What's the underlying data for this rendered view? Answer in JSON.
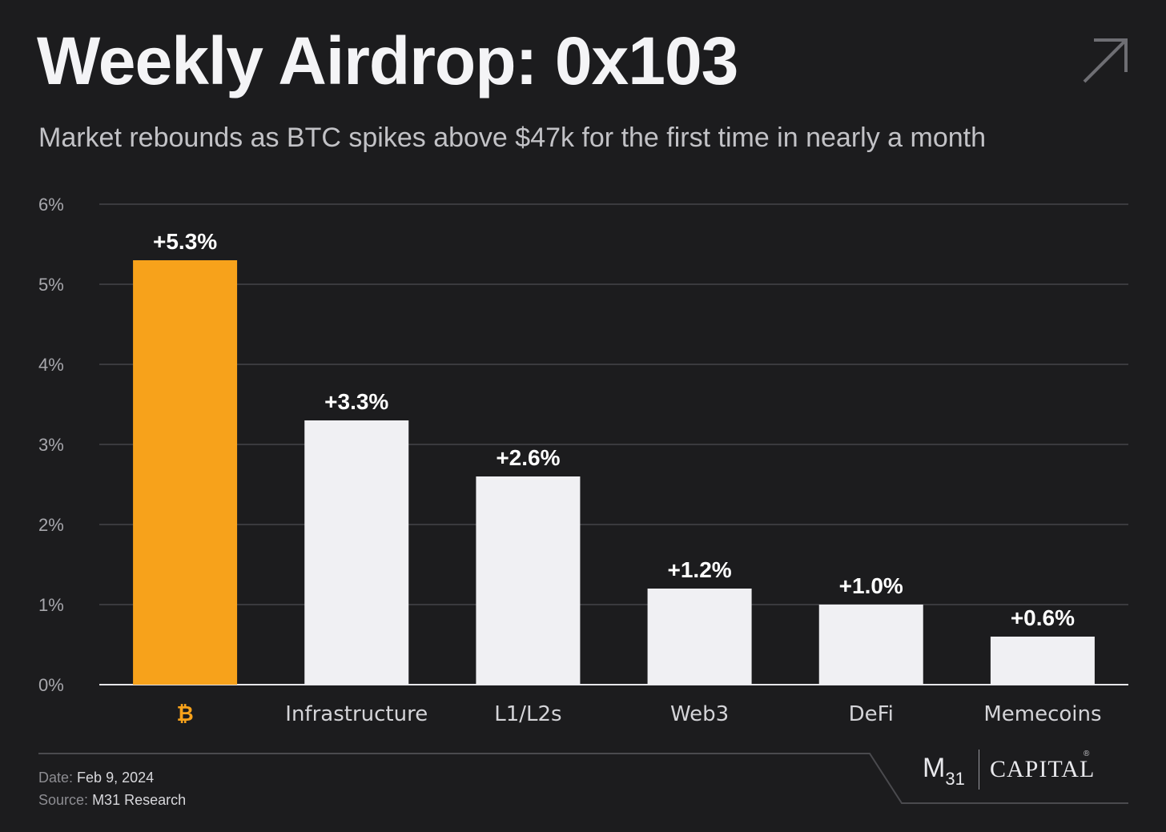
{
  "header": {
    "title": "Weekly Airdrop: 0x103",
    "subtitle": "Market rebounds as BTC spikes above $47k for the first time in nearly a month",
    "corner_icon": "arrow-up-right-icon"
  },
  "chart_data": {
    "type": "bar",
    "categories": [
      "₿",
      "Infrastructure",
      "L1/L2s",
      "Web3",
      "DeFi",
      "Memecoins"
    ],
    "values": [
      5.3,
      3.3,
      2.6,
      1.2,
      1.0,
      0.6
    ],
    "data_labels": [
      "+5.3%",
      "+3.3%",
      "+2.6%",
      "+1.2%",
      "+1.0%",
      "+0.6%"
    ],
    "yticks": [
      "0%",
      "1%",
      "2%",
      "3%",
      "4%",
      "5%",
      "6%"
    ],
    "ylim": [
      0,
      6
    ],
    "grid": true,
    "colors": {
      "highlight": "#f7a21b",
      "default": "#f0f0f3",
      "grid": "#444448",
      "axis_text": "#a8a8ad",
      "category_text": "#d4d4d8"
    },
    "highlight_index": 0
  },
  "footer": {
    "date_label": "Date:",
    "date_value": "Feb 9, 2024",
    "source_label": "Source:",
    "source_value": "M31 Research"
  },
  "logo": {
    "m_text": "M",
    "sub_text": "31",
    "capital_text": "CAPITAL",
    "reg_mark": "®"
  }
}
